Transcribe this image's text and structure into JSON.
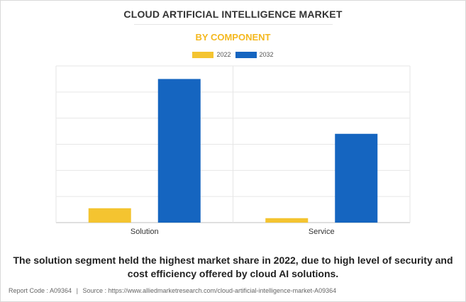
{
  "chart_data": {
    "type": "bar",
    "title": "CLOUD ARTIFICIAL INTELLIGENCE MARKET",
    "subtitle": "BY COMPONENT",
    "categories": [
      "Solution",
      "Service"
    ],
    "series": [
      {
        "name": "2022",
        "values": [
          0.55,
          0.17
        ],
        "color": "#f4c430"
      },
      {
        "name": "2032",
        "values": [
          5.5,
          3.4
        ],
        "color": "#1565c0"
      }
    ],
    "ylim": [
      0,
      6
    ],
    "y_gridlines": 6,
    "grid": true,
    "legend_position": "top-center",
    "y_tick_labels_shown": false
  },
  "caption": "The solution segment held the highest market share in 2022, due to high level of security and cost efficiency offered by cloud AI solutions.",
  "footer": {
    "report_code": "Report Code : A09364",
    "separator": "|",
    "source": "Source : https://www.alliedmarketresearch.com/cloud-artificial-intelligence-market-A09364"
  }
}
